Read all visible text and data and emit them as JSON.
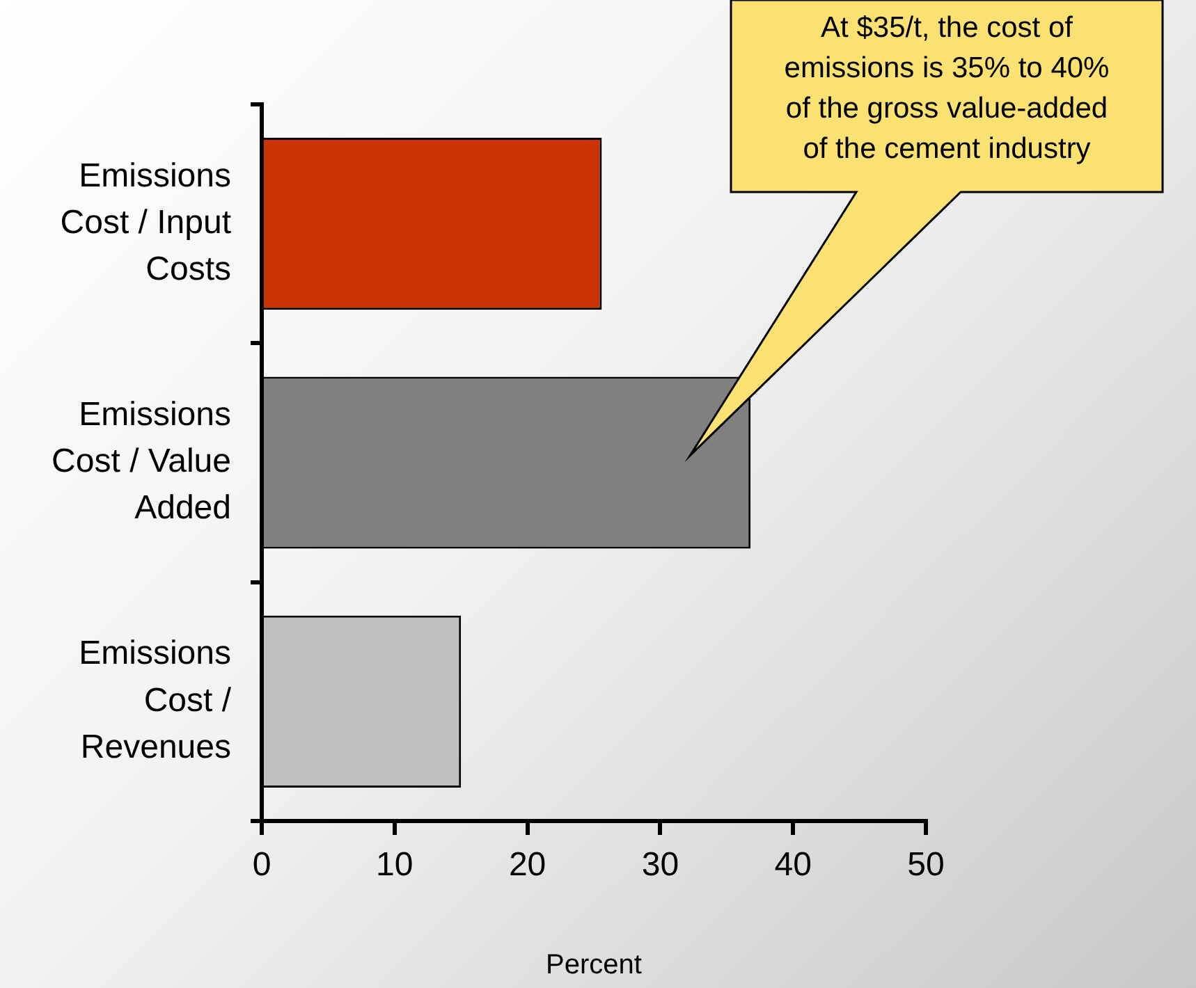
{
  "chart_data": {
    "type": "bar",
    "orientation": "horizontal",
    "categories": [
      "Emissions Cost / Input Costs",
      "Emissions Cost / Value Added",
      "Emissions Cost / Revenues"
    ],
    "values": [
      25.6,
      36.8,
      15.0
    ],
    "colors": [
      "#cc3300",
      "#808080",
      "#c0c0c0"
    ],
    "xlim": [
      0,
      50
    ],
    "xticks": [
      0,
      10,
      20,
      30,
      40,
      50
    ],
    "xlabel": "Percent",
    "annotations": [
      "At $35/t, the cost of emissions is 35% to 40% of the gross value-added of the cement industry"
    ],
    "legend": false
  }
}
